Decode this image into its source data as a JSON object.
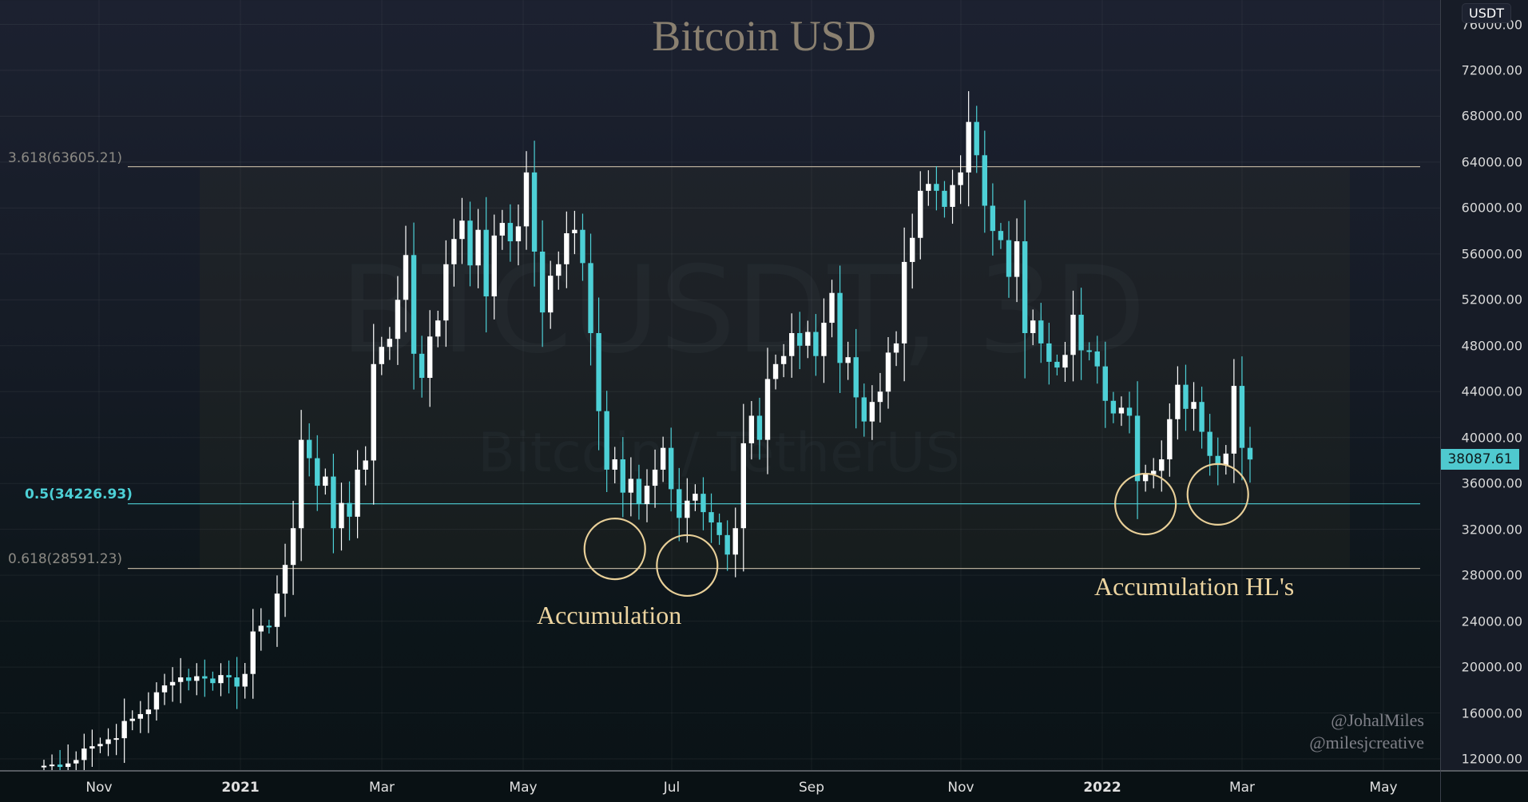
{
  "chart_data": {
    "type": "candlestick",
    "title": "Bitcoin USD",
    "symbol_watermark": "BTCUSDT, 3D",
    "symbol_description": "Bitcoin / TetherUS",
    "currency": "USDT",
    "interval": "3D",
    "ylim": [
      12000,
      74000
    ],
    "y_ticks": [
      "12000.00",
      "16000.00",
      "20000.00",
      "24000.00",
      "28000.00",
      "32000.00",
      "36000.00",
      "40000.00",
      "44000.00",
      "48000.00",
      "52000.00",
      "56000.00",
      "60000.00",
      "64000.00",
      "68000.00",
      "72000.00",
      "76000.00"
    ],
    "x_ticks": [
      "Nov",
      "2021",
      "Mar",
      "May",
      "Jul",
      "Sep",
      "Nov",
      "2022",
      "Mar",
      "May"
    ],
    "last_price": "38087.61",
    "start_open": 11300,
    "closes": [
      11400,
      11500,
      11300,
      11600,
      11900,
      12900,
      13100,
      13300,
      13700,
      13800,
      15300,
      15500,
      15900,
      16300,
      17800,
      18400,
      18700,
      19100,
      18800,
      19200,
      19000,
      18600,
      19300,
      19100,
      18300,
      19400,
      23100,
      23600,
      23500,
      26400,
      28900,
      32100,
      39800,
      38200,
      35800,
      36600,
      32100,
      34300,
      33100,
      37200,
      38000,
      46400,
      47900,
      48600,
      52000,
      55900,
      47300,
      45200,
      48800,
      50200,
      55100,
      57300,
      58900,
      55000,
      58100,
      52300,
      57600,
      58700,
      57100,
      58400,
      63100,
      56200,
      50900,
      54100,
      55100,
      57800,
      58100,
      55200,
      49100,
      42300,
      37200,
      38100,
      35200,
      36400,
      34200,
      35800,
      37200,
      39100,
      35500,
      33000,
      34500,
      35100,
      33500,
      32600,
      31500,
      29800,
      32100,
      39500,
      41900,
      39800,
      45100,
      46400,
      47100,
      49100,
      48000,
      49200,
      47100,
      50000,
      52600,
      46500,
      47000,
      43500,
      41400,
      43100,
      44000,
      47400,
      48200,
      55300,
      57400,
      61500,
      62100,
      61500,
      60100,
      62000,
      63100,
      67500,
      64600,
      60200,
      58000,
      57200,
      54000,
      57100,
      49100,
      50200,
      48200,
      46600,
      46100,
      47200,
      50700,
      47600,
      47500,
      46200,
      43200,
      42100,
      42600,
      41900,
      36200,
      36800,
      37100,
      38100,
      41600,
      44600,
      42500,
      43100,
      40500,
      38400,
      37600,
      38600,
      44500,
      39100,
      38087.61
    ],
    "fib_levels": [
      {
        "label": "3.618(63605.21)",
        "price": 63605.21,
        "color": "#b5ab98"
      },
      {
        "label": "0.5(34226.93)",
        "price": 34226.93,
        "color": "#4dd0d6"
      },
      {
        "label": "0.618(28591.23)",
        "price": 28591.23,
        "color": "#b5ab98"
      }
    ],
    "highlight_circles": [
      {
        "candle_index": 71,
        "price": 30300
      },
      {
        "candle_index": 80,
        "price": 28850
      },
      {
        "candle_index": 137,
        "price": 34200
      },
      {
        "candle_index": 146,
        "price": 35050
      }
    ],
    "annotations": [
      "Accumulation",
      "Accumulation HL's"
    ],
    "colors": {
      "up": "#ffffff",
      "down": "#4dd0d6",
      "circle": "#e8cf98"
    }
  },
  "credits": [
    "@JohalMiles",
    "@milesjcreative"
  ]
}
